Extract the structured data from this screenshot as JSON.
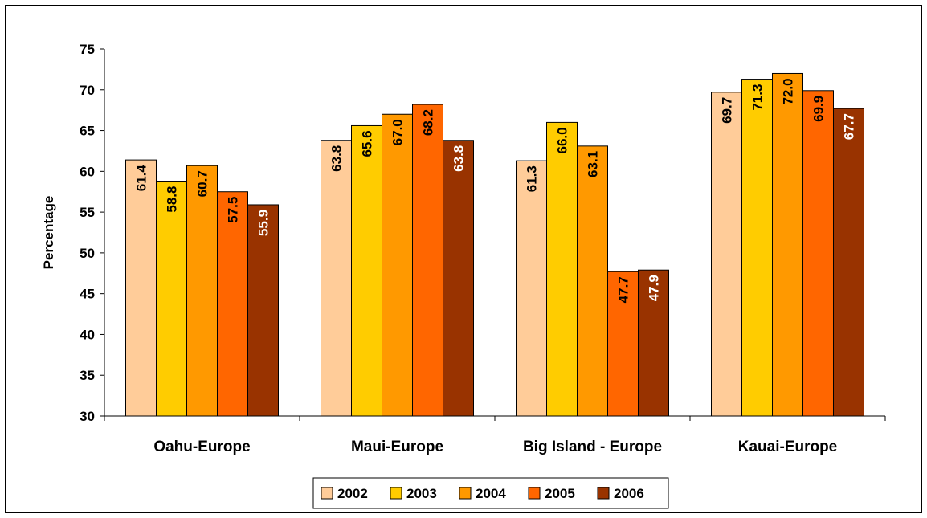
{
  "chart_data": {
    "type": "bar",
    "title": "",
    "xlabel": "",
    "ylabel": "Percentage",
    "ylim": [
      30,
      75
    ],
    "yticks": [
      30,
      35,
      40,
      45,
      50,
      55,
      60,
      65,
      70,
      75
    ],
    "grid": false,
    "legend_position": "bottom",
    "categories": [
      "Oahu-Europe",
      "Maui-Europe",
      "Big Island - Europe",
      "Kauai-Europe"
    ],
    "series": [
      {
        "name": "2002",
        "color": "#FFCC99",
        "label_color": "#000000",
        "values": [
          61.4,
          63.8,
          61.3,
          69.7
        ]
      },
      {
        "name": "2003",
        "color": "#FFCC00",
        "label_color": "#000000",
        "values": [
          58.8,
          65.6,
          66.0,
          71.3
        ]
      },
      {
        "name": "2004",
        "color": "#FF9900",
        "label_color": "#000000",
        "values": [
          60.7,
          67.0,
          63.1,
          72.0
        ]
      },
      {
        "name": "2005",
        "color": "#FF6600",
        "label_color": "#000000",
        "values": [
          57.5,
          68.2,
          47.7,
          69.9
        ]
      },
      {
        "name": "2006",
        "color": "#993300",
        "label_color": "#FFFFFF",
        "values": [
          55.9,
          63.8,
          47.9,
          67.7
        ]
      }
    ],
    "data_labels": [
      [
        "61.4",
        "58.8",
        "60.7",
        "57.5",
        "55.9"
      ],
      [
        "63.8",
        "65.6",
        "67.0",
        "68.2",
        "63.8"
      ],
      [
        "61.3",
        "66.0",
        "63.1",
        "47.7",
        "47.9"
      ],
      [
        "69.7",
        "71.3",
        "72.0",
        "69.9",
        "67.7"
      ]
    ]
  }
}
